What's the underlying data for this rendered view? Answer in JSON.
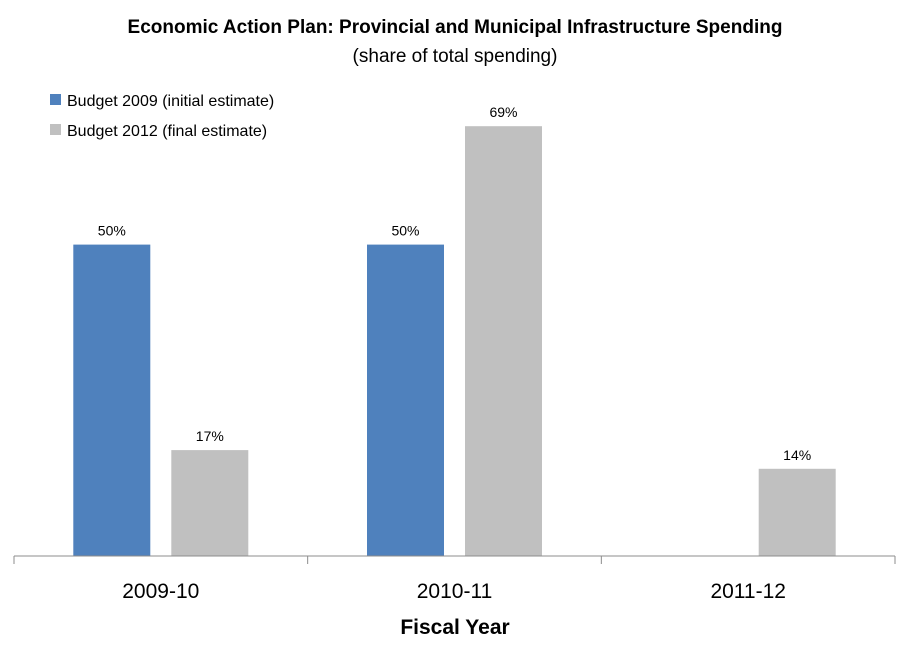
{
  "chart_data": {
    "type": "bar",
    "title": "Economic Action Plan: Provincial and Municipal Infrastructure Spending",
    "subtitle": "(share of total spending)",
    "xlabel": "Fiscal Year",
    "ylabel": "",
    "categories": [
      "2009-10",
      "2010-11",
      "2011-12"
    ],
    "series": [
      {
        "name": "Budget 2009 (initial estimate)",
        "color": "#4F81BD",
        "values": [
          50,
          50,
          null
        ],
        "labels": [
          "50%",
          "50%",
          ""
        ]
      },
      {
        "name": "Budget 2012 (final estimate)",
        "color": "#C0C0C0",
        "values": [
          17,
          69,
          14
        ],
        "labels": [
          "17%",
          "69%",
          "14%"
        ]
      }
    ],
    "ylim": [
      0,
      70
    ],
    "grid": false,
    "legend_position": "top-left"
  }
}
